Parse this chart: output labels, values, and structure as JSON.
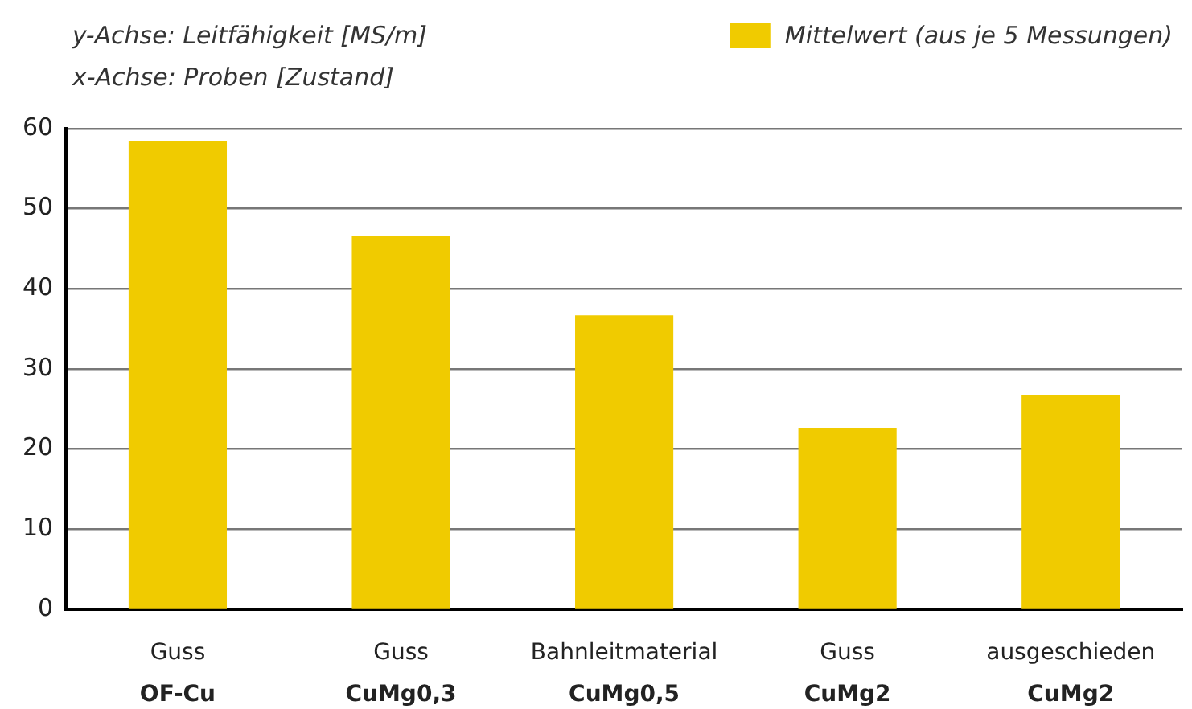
{
  "chart_data": {
    "type": "bar",
    "ylabel": "y-Achse: Leitfähigkeit [MS/m]",
    "xlabel": "x-Achse: Proben [Zustand]",
    "categories": [
      "Guss\nOF-Cu",
      "Guss\nCuMg0,3",
      "Bahnleitmaterial\nCuMg0,5",
      "Guss\nCuMg2",
      "ausgeschieden\nCuMg2"
    ],
    "series": [
      {
        "name": "Mittelwert (aus je 5 Messungen)",
        "color": "#f0cb00",
        "values": [
          58.5,
          46.6,
          36.7,
          22.6,
          26.7
        ]
      }
    ],
    "ylim": [
      0,
      60
    ],
    "yticks": [
      0,
      10,
      20,
      30,
      40,
      50,
      60
    ],
    "grid": "y",
    "legend": "top right"
  }
}
